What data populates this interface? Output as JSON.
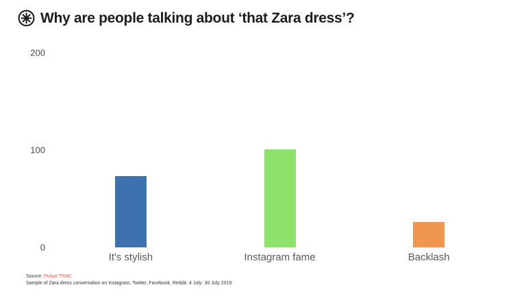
{
  "title": "Why are people talking about ‘that Zara dress’?",
  "logo": {
    "name": "pulsar-circled-asterisk-logo",
    "color": "#1c1c1c"
  },
  "chart_data": {
    "type": "bar",
    "title": "Why are people talking about ‘that Zara dress’?",
    "categories": [
      "It's stylish",
      "Instagram fame",
      "Backlash"
    ],
    "values": [
      73,
      101,
      26
    ],
    "colors": [
      "#3d72ae",
      "#8ce26a",
      "#f0964e"
    ],
    "xlabel": "",
    "ylabel": "",
    "ylim": [
      0,
      200
    ],
    "yticks": [
      0,
      100,
      200
    ],
    "grid": false,
    "legend": false
  },
  "footer": {
    "source_label": "Source:",
    "source_name": "Pulsar TRAC",
    "source_color": "#e75b45",
    "sample_note": "Sample of Zara dress conversation on Instagram, Twitter, Facebook, Reddit, 4 July- 30 July 2019"
  }
}
